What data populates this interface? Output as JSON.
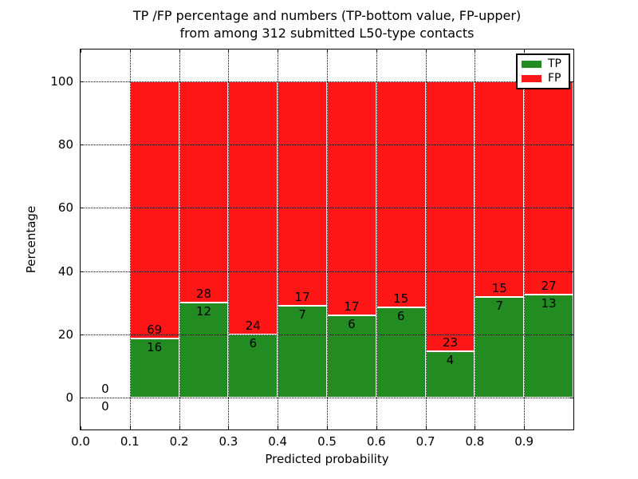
{
  "figure": {
    "background": "#ffffff",
    "title_line1": "TP /FP percentage and numbers (TP-bottom value, FP-upper)",
    "title_line2": "from among 312 submitted L50-type contacts"
  },
  "chart_data": {
    "type": "bar",
    "stacked": true,
    "title_lines": [
      "TP /FP percentage and numbers (TP-bottom value, FP-upper)",
      "from among 312 submitted L50-type contacts"
    ],
    "xlabel": "Predicted probability",
    "ylabel": "Percentage",
    "xlim": [
      0.0,
      1.0
    ],
    "ylim": [
      -10,
      110
    ],
    "xticks": {
      "values": [
        0.0,
        0.1,
        0.2,
        0.3,
        0.4,
        0.5,
        0.6,
        0.7,
        0.8,
        0.9
      ],
      "labels": [
        "0.0",
        "0.1",
        "0.2",
        "0.3",
        "0.4",
        "0.5",
        "0.6",
        "0.7",
        "0.8",
        "0.9"
      ]
    },
    "yticks": {
      "values": [
        0,
        20,
        40,
        60,
        80,
        100
      ],
      "labels": [
        "0",
        "20",
        "40",
        "60",
        "80",
        "100"
      ]
    },
    "grid": {
      "style": "dotted",
      "color": "#000000",
      "drawn_on_top_of_bars": true
    },
    "bin_width": 0.1,
    "total_contacts": 312,
    "bins": [
      {
        "x_start": 0.0,
        "x_end": 0.1,
        "tp": 0,
        "fp": 0,
        "tp_pct": null
      },
      {
        "x_start": 0.1,
        "x_end": 0.2,
        "tp": 16,
        "fp": 69,
        "tp_pct": 18.82
      },
      {
        "x_start": 0.2,
        "x_end": 0.3,
        "tp": 12,
        "fp": 28,
        "tp_pct": 30.0
      },
      {
        "x_start": 0.3,
        "x_end": 0.4,
        "tp": 6,
        "fp": 24,
        "tp_pct": 20.0
      },
      {
        "x_start": 0.4,
        "x_end": 0.5,
        "tp": 7,
        "fp": 17,
        "tp_pct": 29.17
      },
      {
        "x_start": 0.5,
        "x_end": 0.6,
        "tp": 6,
        "fp": 17,
        "tp_pct": 26.09
      },
      {
        "x_start": 0.6,
        "x_end": 0.7,
        "tp": 6,
        "fp": 15,
        "tp_pct": 28.57
      },
      {
        "x_start": 0.7,
        "x_end": 0.8,
        "tp": 4,
        "fp": 23,
        "tp_pct": 14.81
      },
      {
        "x_start": 0.8,
        "x_end": 0.9,
        "tp": 7,
        "fp": 15,
        "tp_pct": 31.82
      },
      {
        "x_start": 0.9,
        "x_end": 1.0,
        "tp": 13,
        "fp": 27,
        "tp_pct": 32.5
      }
    ],
    "series": [
      {
        "name": "TP",
        "color": "#228b22",
        "position": "bottom"
      },
      {
        "name": "FP",
        "color": "#ff1717",
        "position": "top"
      }
    ],
    "legend": {
      "position": "upper right",
      "entries": [
        {
          "label": "TP",
          "color": "#228b22"
        },
        {
          "label": "FP",
          "color": "#ff1717"
        }
      ]
    }
  }
}
